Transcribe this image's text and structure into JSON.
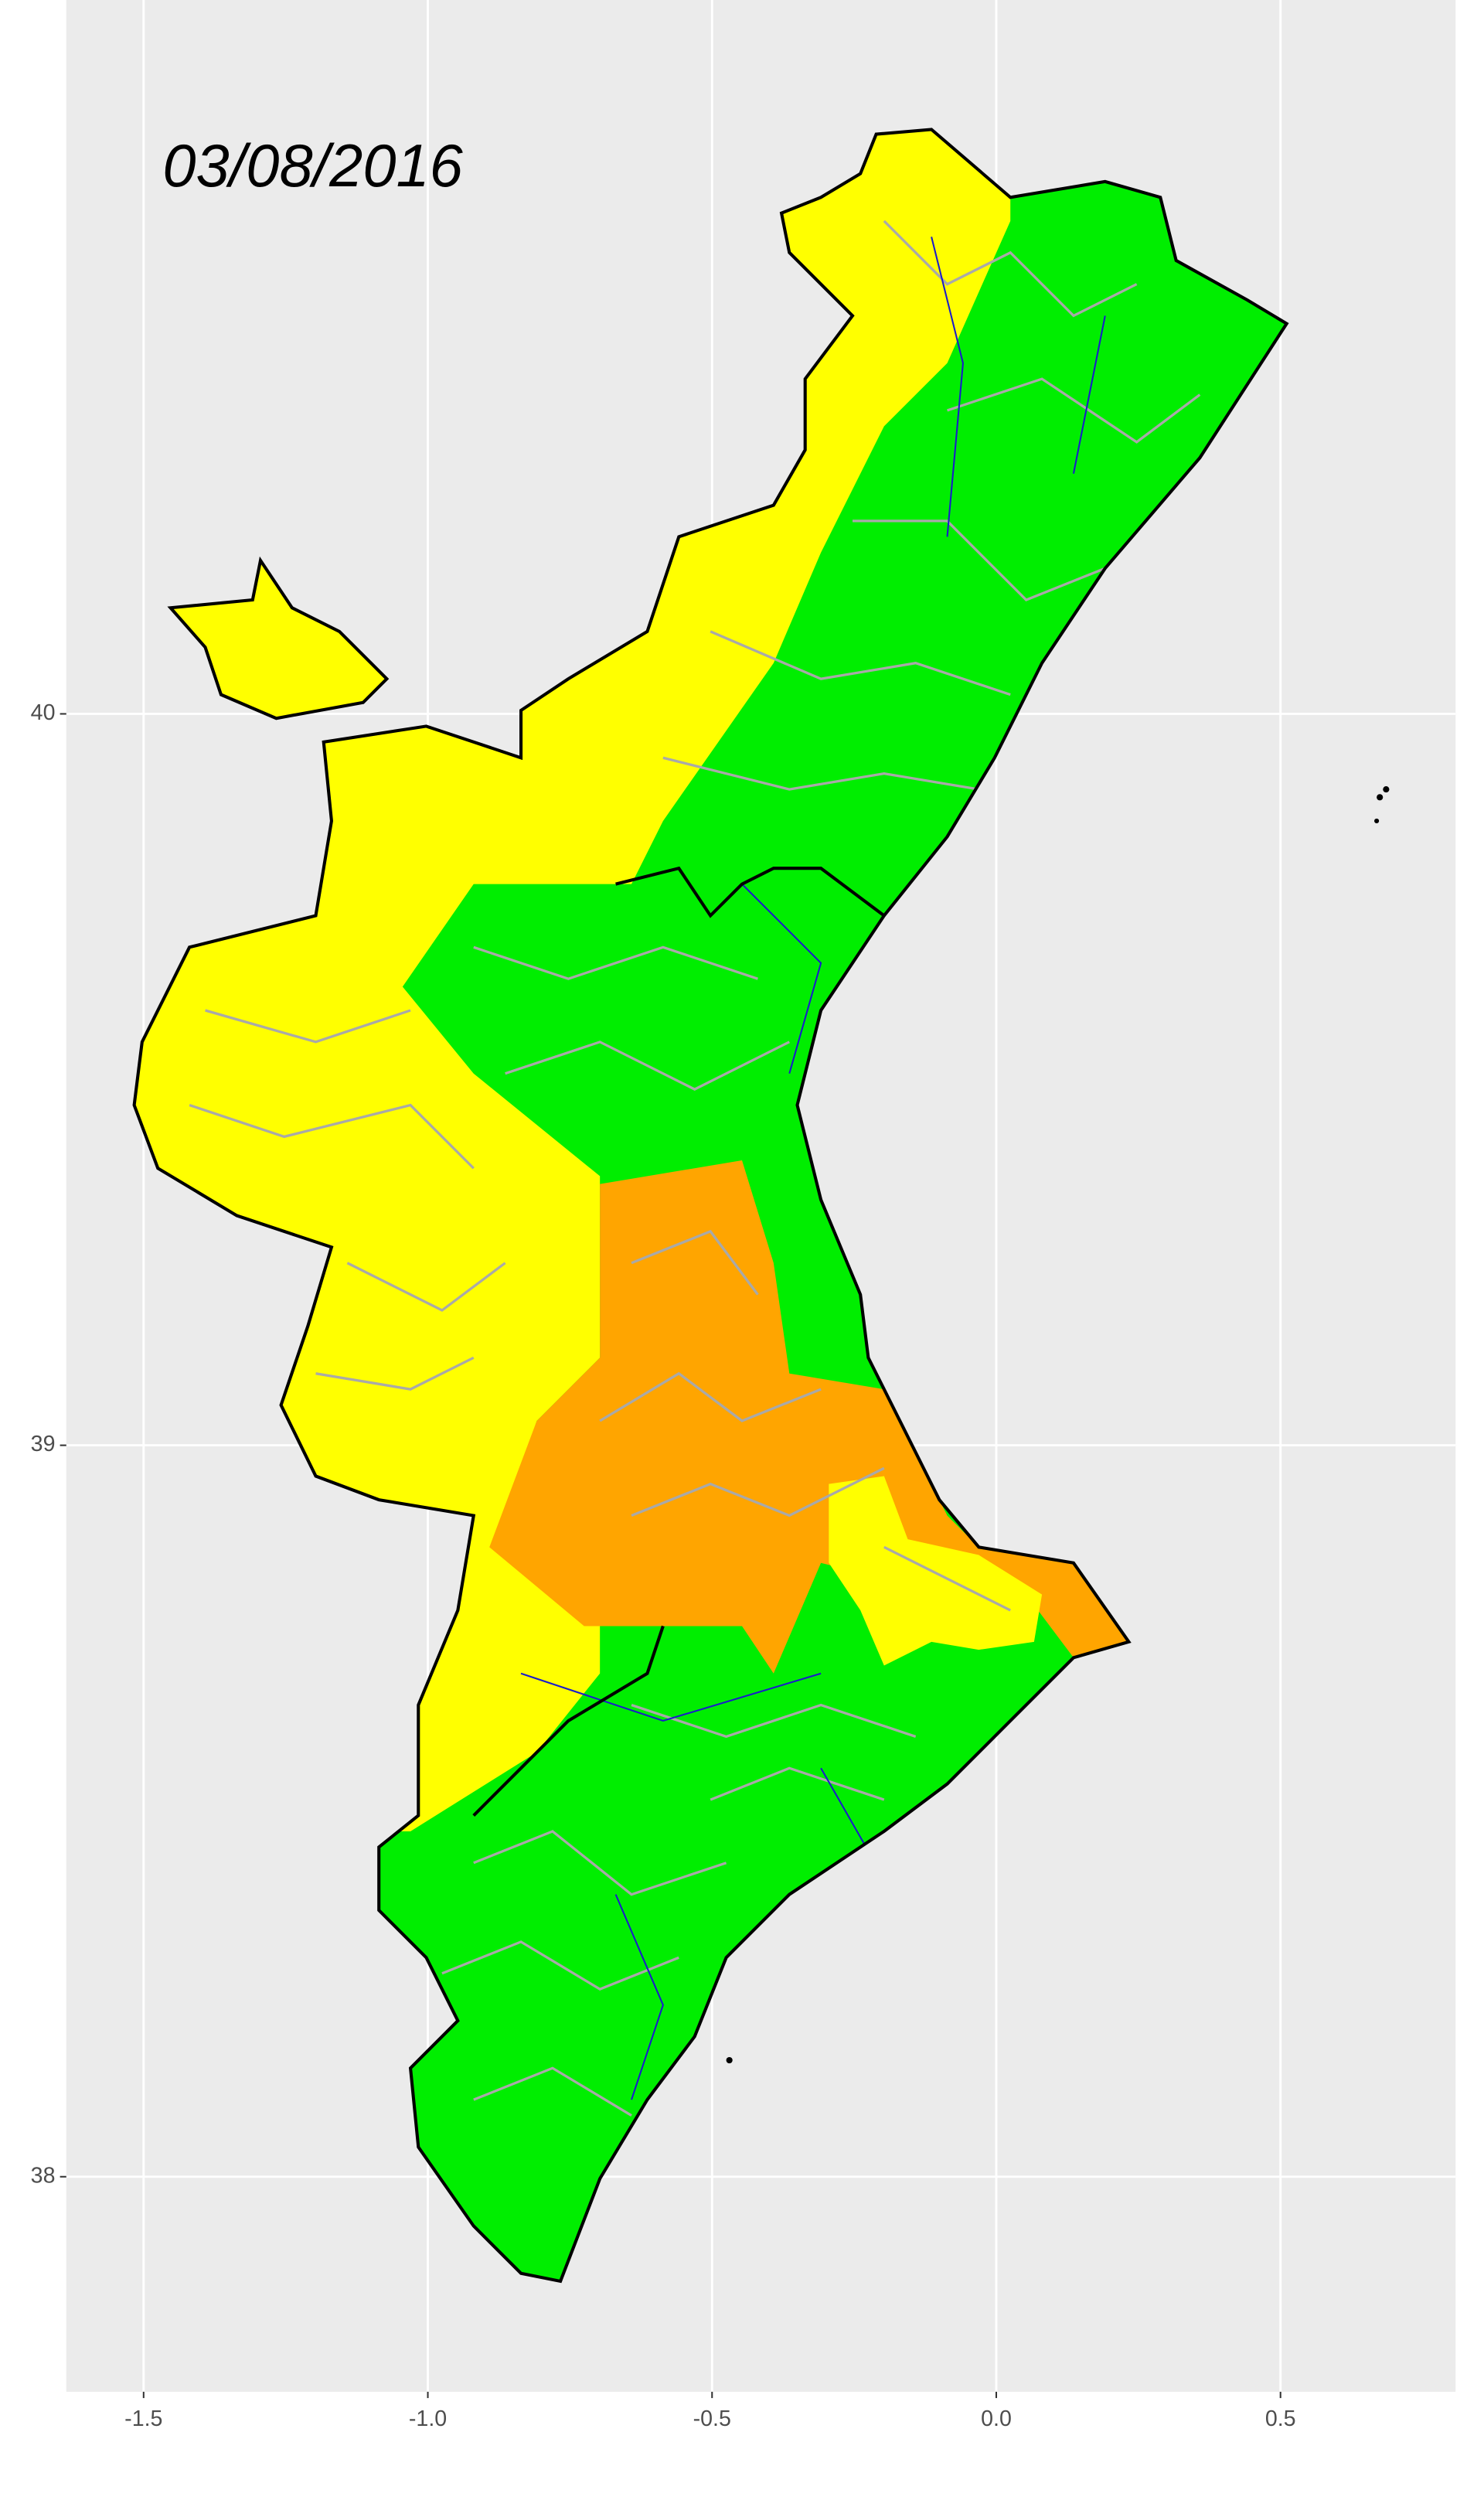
{
  "chart_data": {
    "type": "map",
    "title": "03/08/2016",
    "xlim": [
      -1.636,
      0.808
    ],
    "ylim": [
      37.706,
      40.976
    ],
    "xticks": [
      -1.5,
      {
        "value": -1,
        "label": "-1.0"
      },
      -0.5,
      {
        "value": 0,
        "label": "0.0"
      },
      0.5
    ],
    "yticks": [
      38,
      39,
      40
    ],
    "grid": true
  }
}
